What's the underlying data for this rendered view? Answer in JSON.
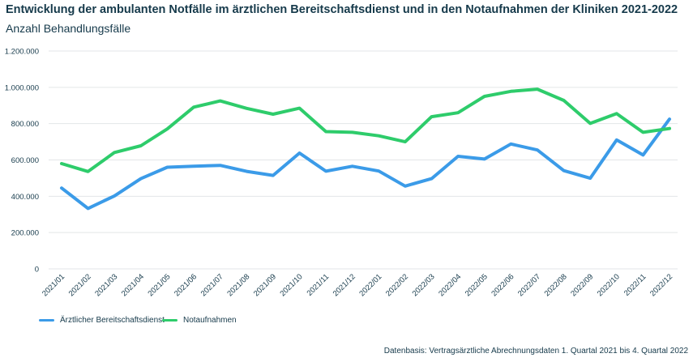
{
  "header": {
    "title": "Entwicklung der ambulanten Notfälle im ärztlichen Bereitschaftsdienst und in den Notaufnahmen der Kliniken 2021-2022",
    "subtitle": "Anzahl Behandlungsfälle"
  },
  "footer": {
    "source": "Datenbasis: Vertragsärztliche Abrechnungsdaten 1. Quartal 2021 bis 4. Quartal 2022"
  },
  "colors": {
    "grid": "#e3e6e8",
    "axis_text": "#163a4b"
  },
  "chart_data": {
    "type": "line",
    "title": "Entwicklung der ambulanten Notfälle im ärztlichen Bereitschaftsdienst und in den Notaufnahmen der Kliniken 2021-2022",
    "subtitle": "Anzahl Behandlungsfälle",
    "xlabel": "",
    "ylabel": "",
    "ylim": [
      0,
      1200000
    ],
    "yticks": [
      0,
      200000,
      400000,
      600000,
      800000,
      1000000,
      1200000
    ],
    "ytick_labels": [
      "0",
      "200.000",
      "400.000",
      "600.000",
      "800.000",
      "1.000.000",
      "1.200.000"
    ],
    "grid": true,
    "legend_position": "bottom-left",
    "categories": [
      "2021/01",
      "2021/02",
      "2021/03",
      "2021/04",
      "2021/05",
      "2021/06",
      "2021/07",
      "2021/08",
      "2021/09",
      "2021/10",
      "2021/11",
      "2021/12",
      "2022/01",
      "2022/02",
      "2022/03",
      "2022/04",
      "2022/05",
      "2022/06",
      "2022/07",
      "2022/08",
      "2022/09",
      "2022/10",
      "2022/11",
      "2022/12"
    ],
    "series": [
      {
        "name": "Ärztlicher Bereitschaftsdienst",
        "color": "#3b9be8",
        "values": [
          445000,
          333000,
          402000,
          497000,
          560000,
          565000,
          570000,
          537000,
          515000,
          638000,
          538000,
          565000,
          539000,
          456000,
          497000,
          620000,
          605000,
          688000,
          655000,
          541000,
          499000,
          710000,
          627000,
          825000
        ]
      },
      {
        "name": "Notaufnahmen",
        "color": "#2ecc6b",
        "values": [
          580000,
          536000,
          641000,
          678000,
          771000,
          891000,
          925000,
          884000,
          852000,
          885000,
          756000,
          752000,
          733000,
          700000,
          838000,
          860000,
          950000,
          978000,
          990000,
          928000,
          801000,
          855000,
          752000,
          773000
        ]
      }
    ]
  }
}
